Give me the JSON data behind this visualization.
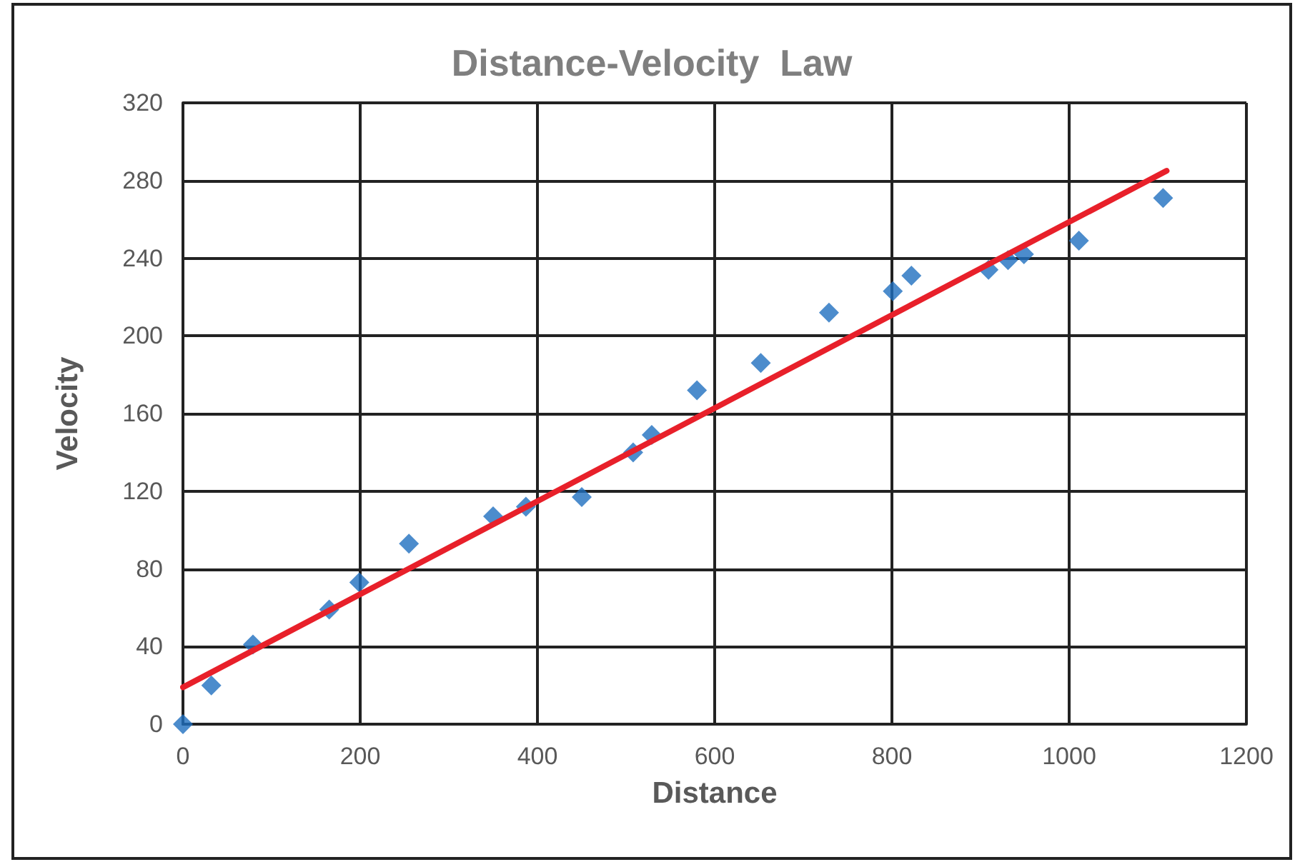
{
  "chart_data": {
    "type": "scatter",
    "title": "Distance-Velocity  Law",
    "xlabel": "Distance",
    "ylabel": "Velocity",
    "xlim": [
      0,
      1200
    ],
    "xticks": [
      0,
      200,
      400,
      600,
      800,
      1000,
      1200
    ],
    "ylim": [
      0,
      320
    ],
    "yticks": [
      0,
      40,
      80,
      120,
      160,
      200,
      240,
      280,
      320
    ],
    "grid": true,
    "marker": "diamond",
    "series": [
      {
        "color": "#1f6fbf",
        "x": [
          0,
          32,
          79,
          165,
          199,
          255,
          350,
          387,
          450,
          508,
          529,
          580,
          652,
          729,
          801,
          822,
          909,
          931,
          949,
          1011,
          1106
        ],
        "values": [
          0,
          20,
          41,
          59,
          73,
          93,
          107,
          112,
          117,
          140,
          149,
          172,
          186,
          212,
          223,
          231,
          234,
          239,
          242,
          249,
          271
        ]
      },
      {
        "type": "line",
        "color": "#e8202a",
        "marker": "none",
        "x": [
          0,
          1110
        ],
        "values": [
          19,
          285
        ]
      }
    ]
  }
}
